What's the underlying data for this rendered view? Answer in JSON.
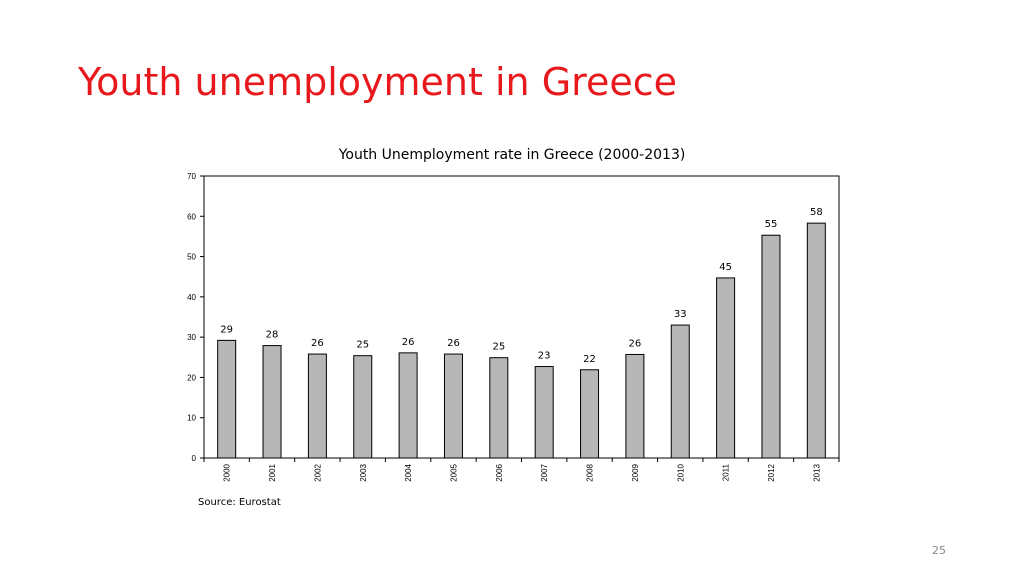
{
  "slide": {
    "title": "Youth unemployment in Greece",
    "source": "Source: Eurostat",
    "page_number": "25"
  },
  "colors": {
    "title": "#e8191c",
    "bar_fill": "#b7b7b7",
    "bar_stroke": "#000000",
    "axis": "#000000"
  },
  "chart_data": {
    "type": "bar",
    "title": "Youth Unemployment rate in Greece (2000-2013)",
    "xlabel": "",
    "ylabel": "",
    "categories": [
      "2000",
      "2001",
      "2002",
      "2003",
      "2004",
      "2005",
      "2006",
      "2007",
      "2008",
      "2009",
      "2010",
      "2011",
      "2012",
      "2013"
    ],
    "values": [
      29.2,
      27.9,
      25.8,
      25.4,
      26.1,
      25.8,
      24.9,
      22.7,
      21.9,
      25.7,
      33.0,
      44.7,
      55.3,
      58.3
    ],
    "data_labels": [
      "29",
      "28",
      "26",
      "25",
      "26",
      "26",
      "25",
      "23",
      "22",
      "26",
      "33",
      "45",
      "55",
      "58"
    ],
    "yticks": [
      "0",
      "10",
      "20",
      "30",
      "40",
      "50",
      "60",
      "70"
    ],
    "ylim": [
      0,
      70
    ],
    "grid": false,
    "legend": "none"
  }
}
